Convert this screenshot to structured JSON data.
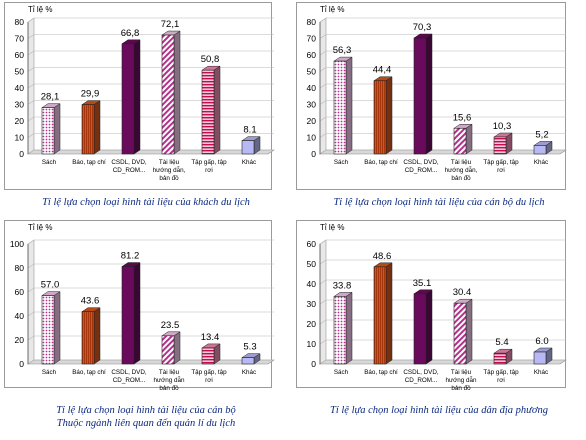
{
  "chart_data": [
    {
      "type": "bar",
      "ylabel": "Tỉ lệ %",
      "ylim": [
        0,
        80
      ],
      "yticks": [
        0,
        10,
        20,
        30,
        40,
        50,
        60,
        70,
        80
      ],
      "categories": [
        [
          "Sách"
        ],
        [
          "Báo, tạp chí"
        ],
        [
          "CSDL, DVD,",
          "CD_ROM..."
        ],
        [
          "Tài liệu",
          "hướng dẫn,",
          "bản đồ"
        ],
        [
          "Tập gấp, tập",
          "rơi"
        ],
        [
          "Khác"
        ]
      ],
      "values": [
        28.1,
        29.9,
        66.8,
        72.1,
        50.8,
        8.1
      ],
      "value_labels": [
        "28,1",
        "29,9",
        "66,8",
        "72,1",
        "50,8",
        "8.1"
      ],
      "caption": [
        "Tỉ lệ lựa chọn loại hình tài liệu của khách du lịch"
      ]
    },
    {
      "type": "bar",
      "ylabel": "Tỉ lệ %",
      "ylim": [
        0,
        80
      ],
      "yticks": [
        0,
        10,
        20,
        30,
        40,
        50,
        60,
        70,
        80
      ],
      "categories": [
        [
          "Sách"
        ],
        [
          "Báo, tạp chí"
        ],
        [
          "CSDL, DVD,",
          "CD_ROM..."
        ],
        [
          "Tài liệu",
          "hướng dẫn,",
          "bản đồ"
        ],
        [
          "Tập gấp, tập",
          "rơi"
        ],
        [
          "Khác"
        ]
      ],
      "values": [
        56.3,
        44.4,
        70.3,
        15.6,
        10.3,
        5.2
      ],
      "value_labels": [
        "56,3",
        "44,4",
        "70,3",
        "15,6",
        "10,3",
        "5,2"
      ],
      "caption": [
        "Tỉ lệ lựa chọn loại hình tài liệu của cán bộ du lịch"
      ]
    },
    {
      "type": "bar",
      "ylabel": "Tỉ lệ %",
      "ylim": [
        0,
        100
      ],
      "yticks": [
        0,
        20,
        40,
        60,
        80,
        100
      ],
      "categories": [
        [
          "Sách"
        ],
        [
          "Báo, tạp chí"
        ],
        [
          "CSDL, DVD,",
          "CD_ROM..."
        ],
        [
          "Tài liệu",
          "hướng dẫn",
          "bản đồ"
        ],
        [
          "Tập gấp, tập",
          "rơi"
        ],
        [
          "Khác"
        ]
      ],
      "values": [
        57.0,
        43.6,
        81.2,
        23.5,
        13.4,
        5.3
      ],
      "value_labels": [
        "57.0",
        "43.6",
        "81.2",
        "23.5",
        "13.4",
        "5.3"
      ],
      "caption": [
        "Tỉ lệ lựa chọn loại hình tài liệu của cán bộ",
        "Thuộc ngành  liên quan đến quản lí du lịch"
      ]
    },
    {
      "type": "bar",
      "ylabel": "Tỉ lệ %",
      "ylim": [
        0,
        60
      ],
      "yticks": [
        0,
        10,
        20,
        30,
        40,
        50,
        60
      ],
      "categories": [
        [
          "Sách"
        ],
        [
          "Báo, tạp chí"
        ],
        [
          "CSDL, DVD,",
          "CD_ROM..."
        ],
        [
          "Tài liệu",
          "hướng dẫn",
          "bản đồ"
        ],
        [
          "Tập gấp, tập",
          "rơi"
        ],
        [
          "Khác"
        ]
      ],
      "values": [
        33.8,
        48.6,
        35.1,
        30.4,
        5.4,
        6.0
      ],
      "value_labels": [
        "33.8",
        "48.6",
        "35.1",
        "30.4",
        "5.4",
        "6.0"
      ],
      "caption": [
        "Tỉ lệ lựa chọn loại hình tài liệu của dân địa phương"
      ]
    }
  ],
  "series_colors": {
    "sach": "#f4c6ec",
    "bao": "#d2581e",
    "csdl": "#6a0a5c",
    "tailieu": "#f2c8e6",
    "tapgap": "#f08ab4",
    "khac": "#b8b8f4"
  }
}
